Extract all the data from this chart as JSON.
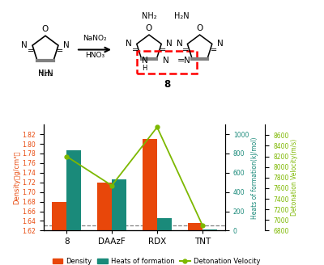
{
  "categories": [
    "8",
    "DAAzF",
    "RDX",
    "TNT"
  ],
  "density": [
    1.68,
    1.72,
    1.81,
    1.635
  ],
  "heats_of_formation": [
    830,
    530,
    130,
    15
  ],
  "detonation_velocity": [
    8200,
    7650,
    8750,
    6900
  ],
  "density_color": "#E8470A",
  "heats_color": "#1A8A7A",
  "velocity_color": "#7DB800",
  "density_ylim": [
    1.62,
    1.84
  ],
  "density_yticks": [
    1.62,
    1.64,
    1.66,
    1.68,
    1.7,
    1.72,
    1.74,
    1.76,
    1.78,
    1.8,
    1.82
  ],
  "heats_ylim": [
    0,
    1100
  ],
  "heats_yticks": [
    0,
    200,
    400,
    600,
    800,
    1000
  ],
  "velocity_ylim": [
    6800,
    8800
  ],
  "velocity_yticks": [
    6800,
    7000,
    7200,
    7400,
    7600,
    7800,
    8000,
    8200,
    8400,
    8600
  ],
  "dashed_line_y": 1.63,
  "bar_width": 0.32,
  "legend_density": "Density",
  "legend_heats": "Heats of formation",
  "legend_velocity": "Detonation Velocity"
}
